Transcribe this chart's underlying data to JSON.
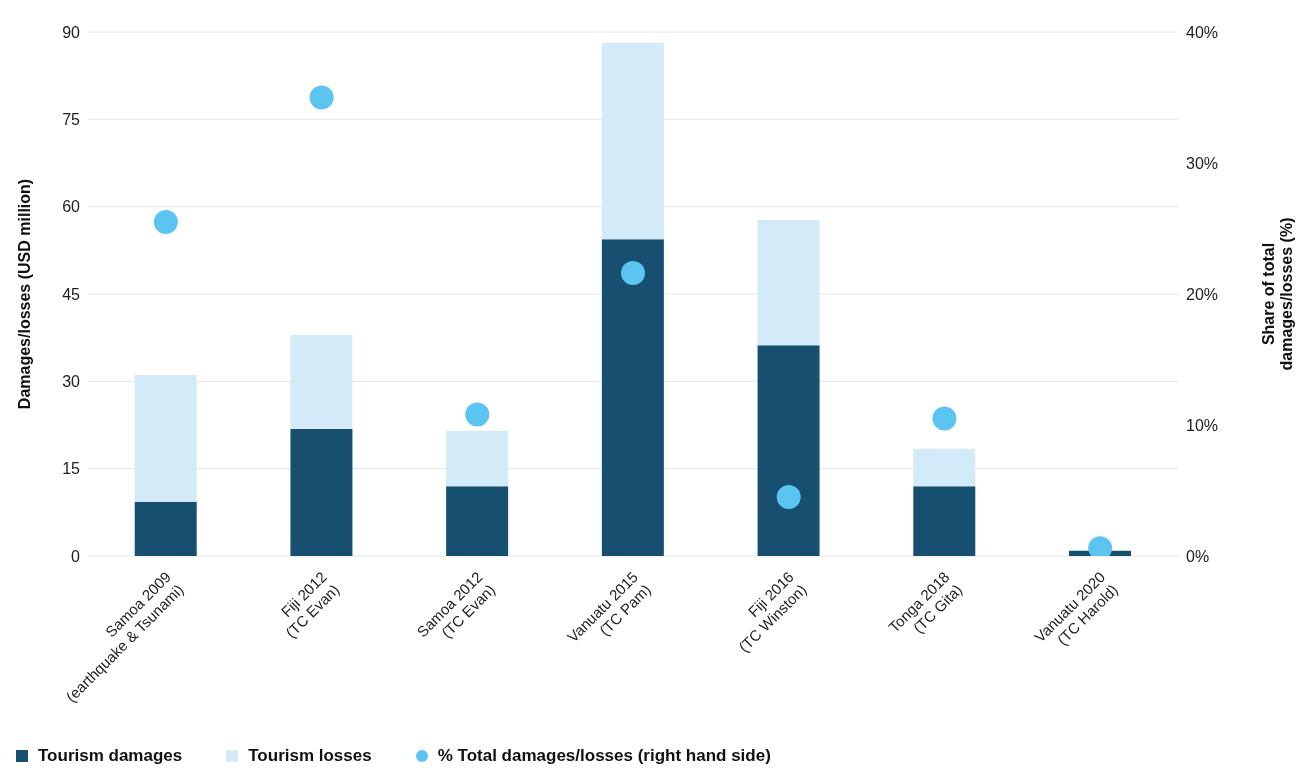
{
  "chart_data": {
    "type": "bar",
    "stacked": true,
    "categories": [
      "Samoa 2009\n(earthquake & Tsunami)",
      "Fiji 2012\n(TC Evan)",
      "Samoa 2012\n(TC Evan)",
      "Vanuatu 2015\n(TC Pam)",
      "Fiji 2016\n(TC Winston)",
      "Tonga 2018\n(TC Gita)",
      "Vanuatu 2020\n(TC Harold)"
    ],
    "ylabel": "Damages/losses (USD million)",
    "y2label": "Share of total\ndamages/losses (%)",
    "series": [
      {
        "name": "Tourism damages",
        "color": "#174f70",
        "values": [
          9.3,
          21.8,
          12.0,
          54.4,
          36.2,
          12.0,
          0.9
        ]
      },
      {
        "name": "Tourism losses",
        "color": "#d3eaf9",
        "values": [
          21.8,
          16.2,
          9.5,
          33.7,
          21.5,
          6.4,
          0
        ]
      },
      {
        "name": "% Total damages/losses (right hand side)",
        "type": "scatter",
        "axis": "y2",
        "color": "#5bc4f1",
        "values": [
          25.5,
          35.0,
          10.8,
          21.6,
          4.5,
          10.5,
          0.6
        ]
      }
    ],
    "ylim": [
      0,
      90
    ],
    "yticks": [
      0,
      15,
      30,
      45,
      60,
      75,
      90
    ],
    "y2lim": [
      0,
      40
    ],
    "y2ticks": [
      {
        "value": 0,
        "label": "0%"
      },
      {
        "value": 10,
        "label": "10%"
      },
      {
        "value": 20,
        "label": "20%"
      },
      {
        "value": 30,
        "label": "30%"
      },
      {
        "value": 40,
        "label": "40%"
      }
    ],
    "grid": "y",
    "legend": "bottom",
    "marker": "circle"
  }
}
